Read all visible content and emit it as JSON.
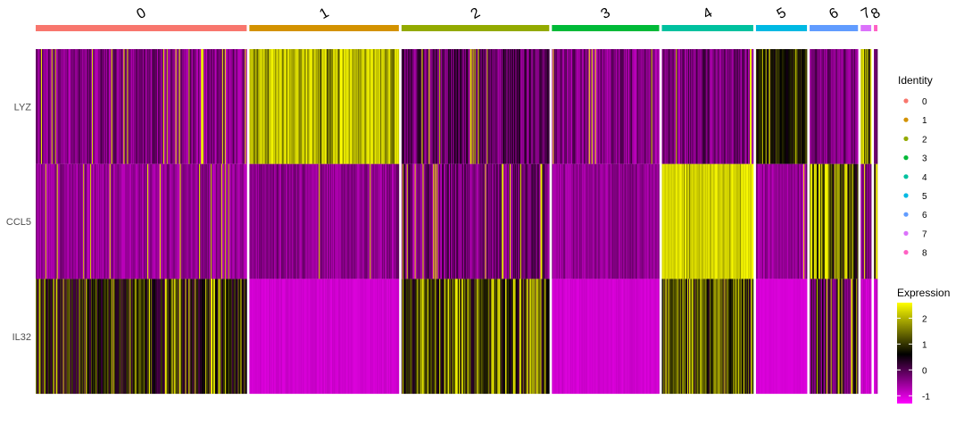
{
  "chart_data": {
    "type": "heatmap",
    "title": "",
    "xlabel": "",
    "ylabel": "",
    "genes": [
      "LYZ",
      "CCL5",
      "IL32"
    ],
    "clusters": [
      {
        "label": "0",
        "color": "#F8766D",
        "cells": 240,
        "profile": {
          "LYZ": {
            "base": -0.35,
            "spread": 0.5,
            "hi": 0.06
          },
          "CCL5": {
            "base": -0.5,
            "spread": 0.35,
            "hi": 0.04
          },
          "IL32": {
            "base": 0.75,
            "spread": 0.8,
            "hi": 0.12
          }
        }
      },
      {
        "label": "1",
        "color": "#D39200",
        "cells": 170,
        "profile": {
          "LYZ": {
            "base": 1.65,
            "spread": 0.55,
            "hi": 0.5
          },
          "CCL5": {
            "base": -0.45,
            "spread": 0.35,
            "hi": 0.02
          },
          "IL32": {
            "base": -0.95,
            "spread": 0.1,
            "hi": 0
          }
        }
      },
      {
        "label": "2",
        "color": "#93AA00",
        "cells": 168,
        "profile": {
          "LYZ": {
            "base": -0.1,
            "spread": 0.6,
            "hi": 0.05
          },
          "CCL5": {
            "base": -0.25,
            "spread": 0.6,
            "hi": 0.08
          },
          "IL32": {
            "base": 0.95,
            "spread": 0.8,
            "hi": 0.2
          }
        }
      },
      {
        "label": "3",
        "color": "#00BA38",
        "cells": 122,
        "profile": {
          "LYZ": {
            "base": -0.35,
            "spread": 0.5,
            "hi": 0.03
          },
          "CCL5": {
            "base": -0.5,
            "spread": 0.3,
            "hi": 0.01
          },
          "IL32": {
            "base": -0.95,
            "spread": 0.1,
            "hi": 0
          }
        }
      },
      {
        "label": "4",
        "color": "#00C19F",
        "cells": 104,
        "profile": {
          "LYZ": {
            "base": -0.3,
            "spread": 0.5,
            "hi": 0.03
          },
          "CCL5": {
            "base": 2.0,
            "spread": 0.45,
            "hi": 0.85
          },
          "IL32": {
            "base": 0.95,
            "spread": 0.8,
            "hi": 0.15
          }
        }
      },
      {
        "label": "5",
        "color": "#00B9E3",
        "cells": 58,
        "profile": {
          "LYZ": {
            "base": 0.8,
            "spread": 0.4,
            "hi": 0.05
          },
          "CCL5": {
            "base": -0.5,
            "spread": 0.35,
            "hi": 0.01
          },
          "IL32": {
            "base": -1.0,
            "spread": 0.05,
            "hi": 0
          }
        }
      },
      {
        "label": "6",
        "color": "#619CFF",
        "cells": 55,
        "profile": {
          "LYZ": {
            "base": -0.3,
            "spread": 0.5,
            "hi": 0.03
          },
          "CCL5": {
            "base": 0.9,
            "spread": 0.8,
            "hi": 0.35
          },
          "IL32": {
            "base": 0.1,
            "spread": 0.8,
            "hi": 0.1
          }
        }
      },
      {
        "label": "7",
        "color": "#DB72FB",
        "cells": 12,
        "profile": {
          "LYZ": {
            "base": 1.0,
            "spread": 0.8,
            "hi": 0.3
          },
          "CCL5": {
            "base": -0.4,
            "spread": 0.4,
            "hi": 0.05
          },
          "IL32": {
            "base": -0.9,
            "spread": 0.2,
            "hi": 0
          }
        }
      },
      {
        "label": "8",
        "color": "#FF61C3",
        "cells": 4,
        "profile": {
          "LYZ": {
            "base": -0.3,
            "spread": 0.4,
            "hi": 0.1
          },
          "CCL5": {
            "base": 0.8,
            "spread": 0.8,
            "hi": 0.5
          },
          "IL32": {
            "base": -0.9,
            "spread": 0.2,
            "hi": 0
          }
        }
      }
    ],
    "color_scale": {
      "low": "#FF00FF",
      "mid": "#000000",
      "high": "#FFFF00",
      "min": -1.3,
      "mid_value": 0.6,
      "max": 2.6
    },
    "legend": {
      "identity_title": "Identity",
      "identity_labels": [
        "0",
        "1",
        "2",
        "3",
        "4",
        "5",
        "6",
        "7",
        "8"
      ],
      "identity_colors": [
        "#F8766D",
        "#D39200",
        "#93AA00",
        "#00BA38",
        "#00C19F",
        "#00B9E3",
        "#619CFF",
        "#DB72FB",
        "#FF61C3"
      ],
      "expression_title": "Expression",
      "expression_ticks": [
        -1,
        0,
        1,
        2
      ]
    }
  }
}
